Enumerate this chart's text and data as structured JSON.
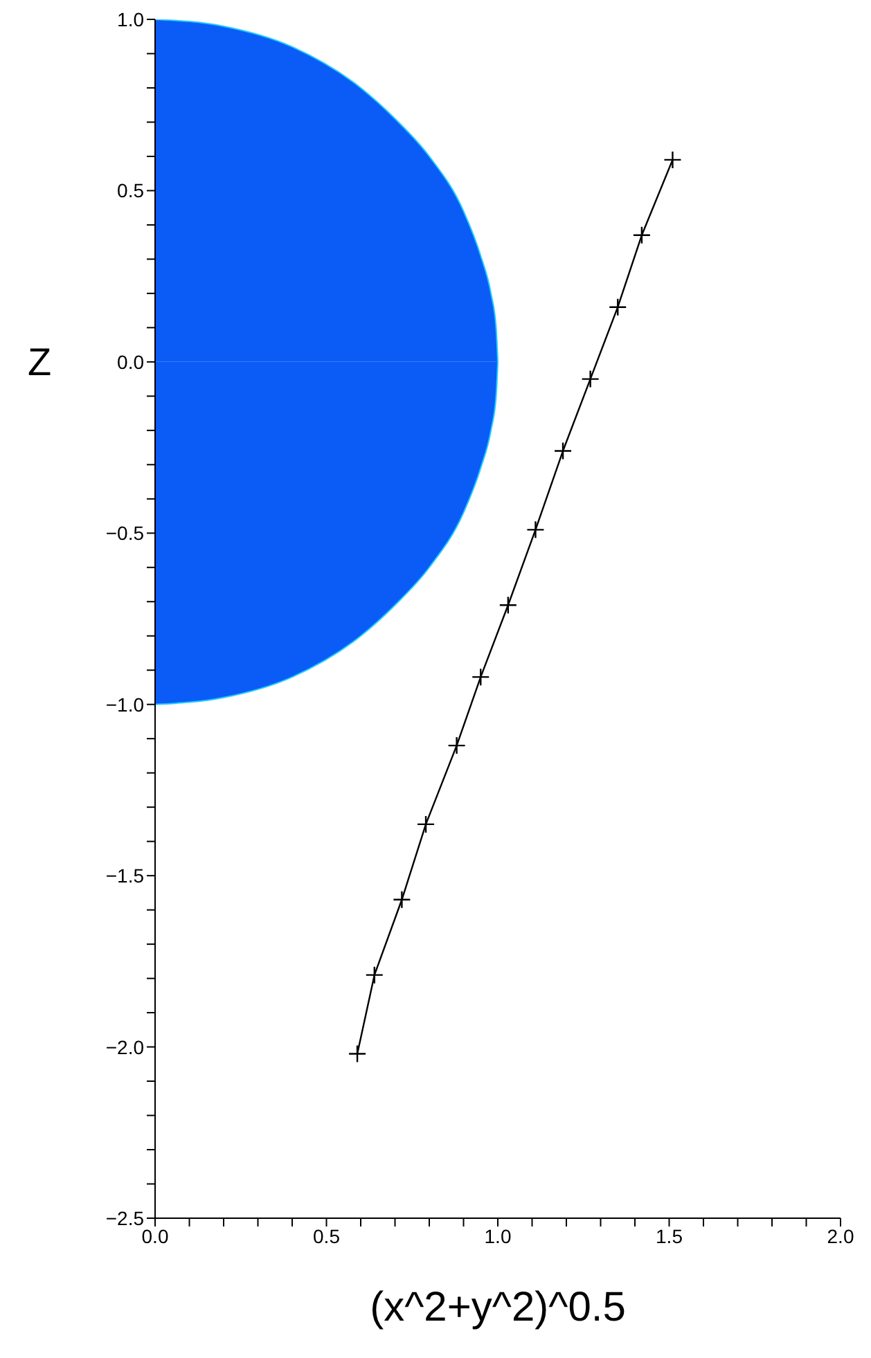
{
  "chart_data": {
    "type": "line",
    "xlabel": "(x^2+y^2)^0.5",
    "ylabel": "Z",
    "xlim": [
      0,
      2
    ],
    "ylim": [
      -2.5,
      1
    ],
    "xticks": [
      {
        "value": 0,
        "label": "0.0"
      },
      {
        "value": 0.1,
        "label": null
      },
      {
        "value": 0.2,
        "label": null
      },
      {
        "value": 0.3,
        "label": null
      },
      {
        "value": 0.4,
        "label": null
      },
      {
        "value": 0.5,
        "label": "0.5"
      },
      {
        "value": 0.6,
        "label": null
      },
      {
        "value": 0.7,
        "label": null
      },
      {
        "value": 0.8,
        "label": null
      },
      {
        "value": 0.9,
        "label": null
      },
      {
        "value": 1,
        "label": "1.0"
      },
      {
        "value": 1.1,
        "label": null
      },
      {
        "value": 1.2,
        "label": null
      },
      {
        "value": 1.3,
        "label": null
      },
      {
        "value": 1.4,
        "label": null
      },
      {
        "value": 1.5,
        "label": "1.5"
      },
      {
        "value": 1.6,
        "label": null
      },
      {
        "value": 1.7,
        "label": null
      },
      {
        "value": 1.8,
        "label": null
      },
      {
        "value": 1.9,
        "label": null
      },
      {
        "value": 2,
        "label": "2.0"
      }
    ],
    "yticks": [
      {
        "value": -2.5,
        "label": "−2.5"
      },
      {
        "value": -2.4,
        "label": null
      },
      {
        "value": -2.3,
        "label": null
      },
      {
        "value": -2.2,
        "label": null
      },
      {
        "value": -2.1,
        "label": null
      },
      {
        "value": -2,
        "label": "−2.0"
      },
      {
        "value": -1.9,
        "label": null
      },
      {
        "value": -1.8,
        "label": null
      },
      {
        "value": -1.7,
        "label": null
      },
      {
        "value": -1.6,
        "label": null
      },
      {
        "value": -1.5,
        "label": "−1.5"
      },
      {
        "value": -1.4,
        "label": null
      },
      {
        "value": -1.3,
        "label": null
      },
      {
        "value": -1.2,
        "label": null
      },
      {
        "value": -1.1,
        "label": null
      },
      {
        "value": -1,
        "label": "−1.0"
      },
      {
        "value": -0.9,
        "label": null
      },
      {
        "value": -0.8,
        "label": null
      },
      {
        "value": -0.7,
        "label": null
      },
      {
        "value": -0.6,
        "label": null
      },
      {
        "value": -0.5,
        "label": "−0.5"
      },
      {
        "value": -0.4,
        "label": null
      },
      {
        "value": -0.3,
        "label": null
      },
      {
        "value": -0.2,
        "label": null
      },
      {
        "value": -0.1,
        "label": null
      },
      {
        "value": 0,
        "label": "0.0"
      },
      {
        "value": 0.1,
        "label": null
      },
      {
        "value": 0.2,
        "label": null
      },
      {
        "value": 0.3,
        "label": null
      },
      {
        "value": 0.4,
        "label": null
      },
      {
        "value": 0.5,
        "label": "0.5"
      },
      {
        "value": 0.6,
        "label": null
      },
      {
        "value": 0.7,
        "label": null
      },
      {
        "value": 0.8,
        "label": null
      },
      {
        "value": 0.9,
        "label": null
      },
      {
        "value": 1,
        "label": "1.0"
      }
    ],
    "grid": false,
    "legend": false,
    "series": [
      {
        "type": "area",
        "color": "#0b5cf6",
        "x": [
          0,
          0.2,
          0.4,
          0.6,
          0.7,
          0.8,
          0.9,
          0.95,
          0.98,
          0.995,
          1
        ],
        "values": [
          1,
          0.98,
          0.92,
          0.8,
          0.71,
          0.6,
          0.44,
          0.31,
          0.2,
          0.1,
          0
        ]
      },
      {
        "type": "area",
        "color": "#0b5cf6",
        "x": [
          0,
          0.2,
          0.4,
          0.6,
          0.7,
          0.8,
          0.9,
          0.95,
          0.98,
          0.995,
          1
        ],
        "values": [
          -1,
          -0.98,
          -0.92,
          -0.8,
          -0.71,
          -0.6,
          -0.44,
          -0.31,
          -0.2,
          -0.1,
          0
        ]
      },
      {
        "type": "line",
        "color": "#000000",
        "marker": "cross",
        "x": [
          0.59,
          0.64,
          0.72,
          0.79,
          0.88,
          0.95,
          1.03,
          1.11,
          1.19,
          1.27,
          1.35,
          1.42,
          1.51
        ],
        "values": [
          -2.02,
          -1.79,
          -1.57,
          -1.35,
          -1.12,
          -0.92,
          -0.71,
          -0.49,
          -0.26,
          -0.05,
          0.16,
          0.37,
          0.59
        ]
      }
    ]
  }
}
